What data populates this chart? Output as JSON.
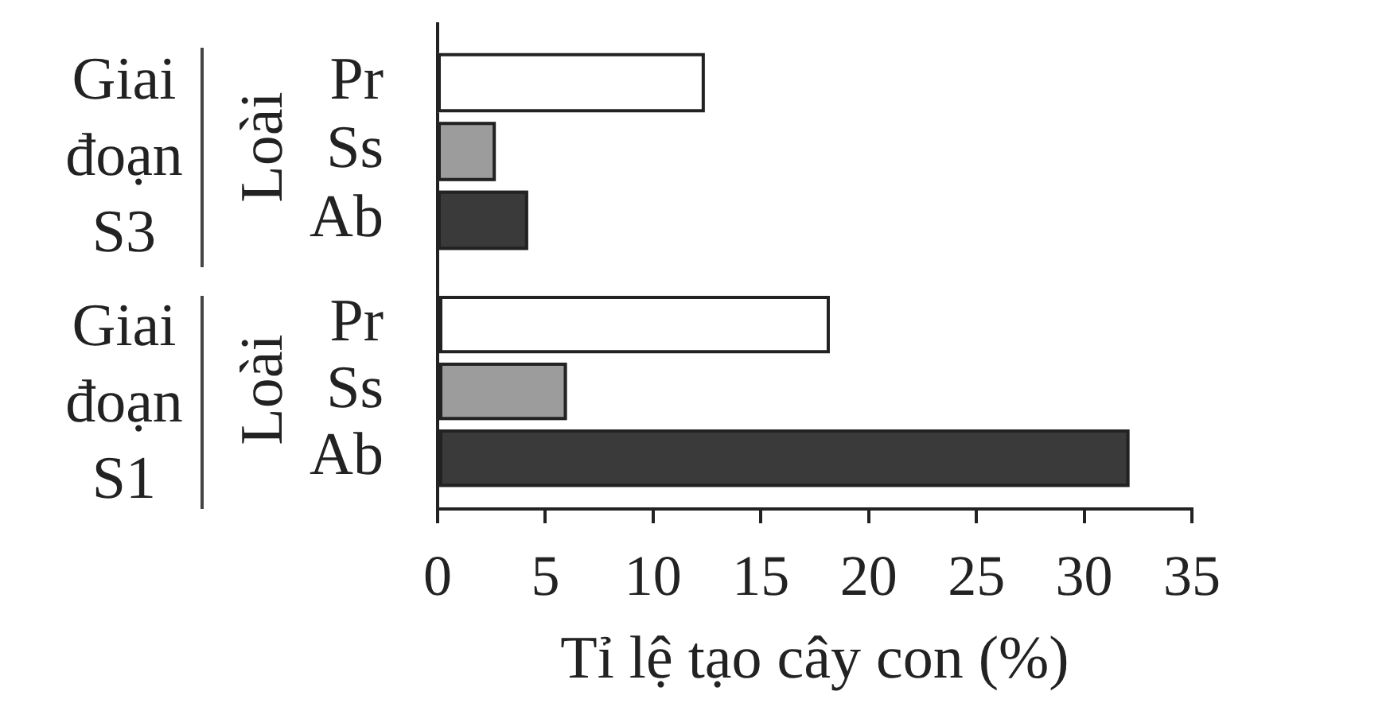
{
  "chart_data": [
    {
      "type": "bar",
      "orientation": "horizontal",
      "categories": [
        "Pr",
        "Ss",
        "Ab"
      ],
      "values": [
        12.4,
        2.7,
        4.2
      ],
      "colors": [
        "#ffffff",
        "#9c9c9c",
        "#3a3a3a"
      ],
      "ylabel": "Loài",
      "annotations": [
        "Giai đoạn S3"
      ],
      "xlim": [
        0,
        35
      ],
      "tick_labels": "y"
    },
    {
      "type": "bar",
      "orientation": "horizontal",
      "categories": [
        "Pr",
        "Ss",
        "Ab"
      ],
      "values": [
        18.2,
        6,
        32.1
      ],
      "colors": [
        "#ffffff",
        "#9c9c9c",
        "#3a3a3a"
      ],
      "ylabel": "Loài",
      "annotations": [
        "Giai đoạn S1"
      ],
      "xlabel": "Tỉ lệ tạo cây con (%)",
      "xlim": [
        0,
        35
      ],
      "xticks": [
        0,
        5,
        10,
        15,
        20,
        25,
        30,
        35
      ]
    }
  ]
}
